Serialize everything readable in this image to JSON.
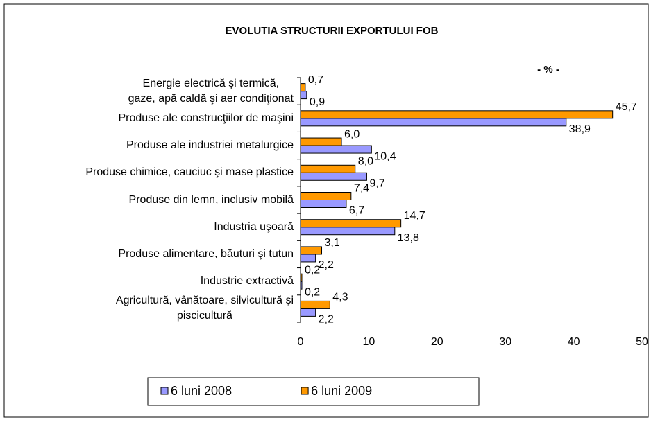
{
  "chart_data": {
    "type": "bar",
    "orientation": "horizontal",
    "title": "EVOLUTIA STRUCTURII EXPORTULUI FOB",
    "unit_label": "- % -",
    "categories": [
      "Energie electrică şi termică,\ngaze, apă caldă şi aer condiţionat",
      "Produse ale construcţiilor de maşini",
      "Produse ale industriei metalurgice",
      "Produse chimice, cauciuc şi mase plastice",
      "Produse din lemn, inclusiv mobilă",
      "Industria uşoară",
      "Produse alimentare, băuturi şi tutun",
      "Industrie extractivă",
      "Agricultură, vânătoare, silvicultură şi\npiscicultură"
    ],
    "series": [
      {
        "name": "6 luni 2008",
        "color": "#9999ff",
        "values": [
          0.9,
          38.9,
          10.4,
          9.7,
          6.7,
          13.8,
          2.2,
          0.2,
          2.2
        ],
        "value_labels": [
          "0,9",
          "38,9",
          "10,4",
          "9,7",
          "6,7",
          "13,8",
          "2,2",
          "0,2",
          "2,2"
        ]
      },
      {
        "name": "6 luni 2009",
        "color": "#ff9900",
        "values": [
          0.7,
          45.7,
          6.0,
          8.0,
          7.4,
          14.7,
          3.1,
          0.2,
          4.3
        ],
        "value_labels": [
          "0,7",
          "45,7",
          "6,0",
          "8,0",
          "7,4",
          "14,7",
          "3,1",
          "0,2",
          "4,3"
        ]
      }
    ],
    "xlim": [
      0,
      50
    ],
    "xticks": [
      0,
      10,
      20,
      30,
      40,
      50
    ],
    "grid": false,
    "legend": "bottom"
  }
}
